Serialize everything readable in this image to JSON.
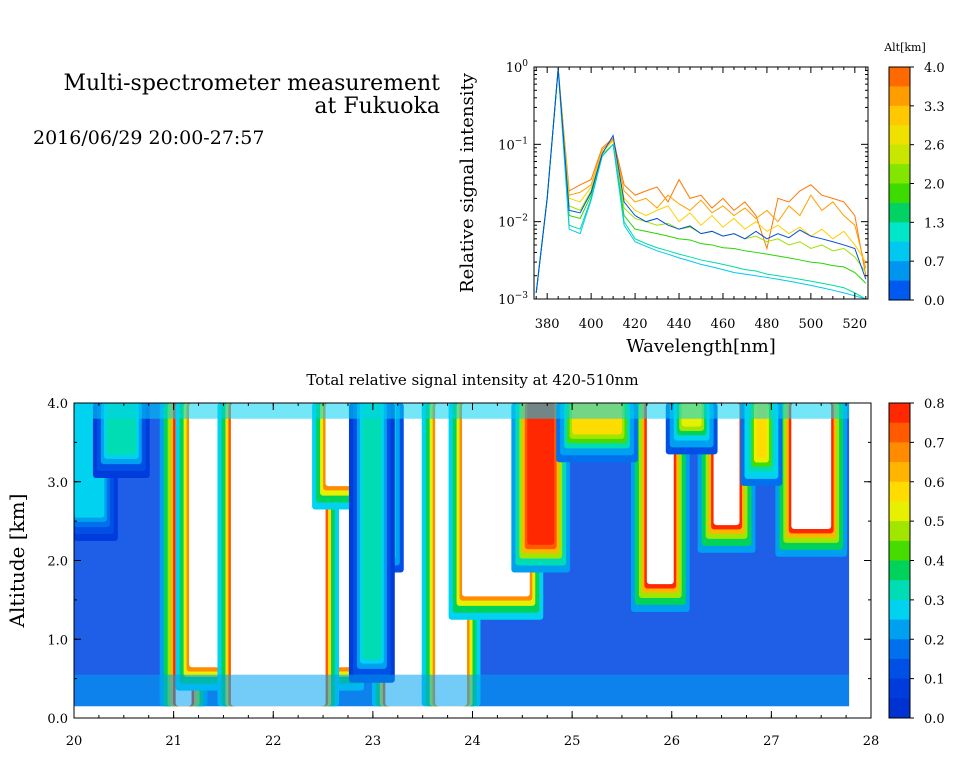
{
  "header": {
    "title_line1": "Multi-spectrometer measurement",
    "title_line2": "at Fukuoka",
    "datetime": "2016/06/29 20:00-27:57"
  },
  "chart_data": [
    {
      "type": "line",
      "xlabel": "Wavelength[nm]",
      "ylabel": "Relative signal intensity",
      "xlim": [
        374,
        526
      ],
      "ylim": [
        0.001,
        1
      ],
      "yscale": "log",
      "x_ticks": [
        380,
        400,
        420,
        440,
        460,
        480,
        500,
        520
      ],
      "y_ticks": [
        {
          "value": 0.001,
          "mantissa": "10",
          "exp": "−3"
        },
        {
          "value": 0.01,
          "mantissa": "10",
          "exp": "−2"
        },
        {
          "value": 0.1,
          "mantissa": "10",
          "exp": "−1"
        },
        {
          "value": 1,
          "mantissa": "10",
          "exp": "0"
        }
      ],
      "x": [
        375,
        380,
        385,
        390,
        395,
        400,
        405,
        410,
        415,
        420,
        425,
        430,
        435,
        440,
        445,
        450,
        455,
        460,
        465,
        470,
        475,
        480,
        485,
        490,
        495,
        500,
        505,
        510,
        515,
        520,
        525
      ],
      "colorbar": {
        "label": "Alt[km]",
        "ticks": [
          "4.0",
          "3.3",
          "2.6",
          "2.0",
          "1.3",
          "0.7",
          "0.0"
        ],
        "colors": [
          "#ff6a00",
          "#ff9d00",
          "#ffc800",
          "#f0e000",
          "#c8e600",
          "#82e600",
          "#3cdc00",
          "#00d264",
          "#00e6c8",
          "#00c8f0",
          "#0096f0",
          "#005af0"
        ]
      },
      "series": [
        {
          "color": "#ff7800",
          "values": [
            0.0012,
            0.02,
            0.95,
            0.025,
            0.03,
            0.035,
            0.09,
            0.12,
            0.03,
            0.022,
            0.025,
            0.028,
            0.018,
            0.035,
            0.02,
            0.022,
            0.015,
            0.02,
            0.014,
            0.018,
            0.012,
            0.0045,
            0.02,
            0.018,
            0.025,
            0.03,
            0.022,
            0.02,
            0.018,
            0.012,
            0.002
          ]
        },
        {
          "color": "#ffa000",
          "values": [
            0.0012,
            0.02,
            0.95,
            0.022,
            0.024,
            0.03,
            0.085,
            0.115,
            0.025,
            0.018,
            0.02,
            0.015,
            0.022,
            0.017,
            0.014,
            0.019,
            0.013,
            0.016,
            0.012,
            0.015,
            0.011,
            0.014,
            0.01,
            0.016,
            0.012,
            0.022,
            0.014,
            0.018,
            0.012,
            0.009,
            0.0025
          ]
        },
        {
          "color": "#ffd000",
          "values": [
            0.0012,
            0.02,
            0.95,
            0.02,
            0.018,
            0.028,
            0.08,
            0.11,
            0.02,
            0.014,
            0.012,
            0.014,
            0.016,
            0.01,
            0.013,
            0.009,
            0.012,
            0.0085,
            0.011,
            0.008,
            0.01,
            0.0075,
            0.009,
            0.007,
            0.0085,
            0.0065,
            0.008,
            0.006,
            0.0075,
            0.005,
            0.003
          ]
        },
        {
          "color": "#a0e000",
          "values": [
            0.0012,
            0.02,
            0.95,
            0.016,
            0.014,
            0.025,
            0.075,
            0.1,
            0.015,
            0.011,
            0.01,
            0.009,
            0.0095,
            0.008,
            0.0085,
            0.007,
            0.0075,
            0.0065,
            0.007,
            0.006,
            0.0065,
            0.0055,
            0.006,
            0.005,
            0.0055,
            0.0045,
            0.005,
            0.0042,
            0.0045,
            0.0035,
            0.0022
          ]
        },
        {
          "color": "#2ad400",
          "values": [
            0.0012,
            0.02,
            0.95,
            0.012,
            0.011,
            0.022,
            0.07,
            0.1,
            0.012,
            0.008,
            0.0075,
            0.007,
            0.0065,
            0.006,
            0.0058,
            0.0052,
            0.005,
            0.0046,
            0.0045,
            0.0042,
            0.004,
            0.0038,
            0.0036,
            0.0034,
            0.0032,
            0.003,
            0.0029,
            0.0027,
            0.0026,
            0.0022,
            0.0016
          ]
        },
        {
          "color": "#00dca0",
          "values": [
            0.0012,
            0.02,
            0.95,
            0.009,
            0.008,
            0.02,
            0.07,
            0.1,
            0.01,
            0.006,
            0.0052,
            0.0046,
            0.0042,
            0.0038,
            0.0035,
            0.0032,
            0.003,
            0.0028,
            0.0026,
            0.0024,
            0.0023,
            0.0021,
            0.002,
            0.0019,
            0.0018,
            0.0017,
            0.0016,
            0.0015,
            0.0014,
            0.0012,
            0.001
          ]
        },
        {
          "color": "#00c8f0",
          "values": [
            0.0012,
            0.02,
            0.95,
            0.008,
            0.007,
            0.019,
            0.07,
            0.1,
            0.009,
            0.0055,
            0.0048,
            0.0042,
            0.0038,
            0.0034,
            0.0031,
            0.0028,
            0.0026,
            0.0024,
            0.0022,
            0.0021,
            0.002,
            0.0019,
            0.0018,
            0.0017,
            0.0016,
            0.0015,
            0.0014,
            0.0013,
            0.0012,
            0.0011,
            0.001
          ]
        },
        {
          "color": "#0050e0",
          "values": [
            0.0012,
            0.02,
            0.95,
            0.014,
            0.013,
            0.024,
            0.075,
            0.13,
            0.018,
            0.012,
            0.01,
            0.011,
            0.009,
            0.008,
            0.0088,
            0.007,
            0.0075,
            0.0065,
            0.007,
            0.006,
            0.0075,
            0.006,
            0.007,
            0.0062,
            0.0078,
            0.0065,
            0.006,
            0.0055,
            0.005,
            0.0045,
            0.0018
          ]
        }
      ]
    },
    {
      "type": "heatmap",
      "title": "Total relative signal intensity at 420-510nm",
      "xlabel": "",
      "ylabel": "Altitude [km]",
      "xlim": [
        20,
        28
      ],
      "ylim": [
        0,
        4
      ],
      "x_ticks": [
        "20",
        "21",
        "22",
        "23",
        "24",
        "25",
        "26",
        "27",
        "28"
      ],
      "y_ticks": [
        "0.0",
        "1.0",
        "2.0",
        "3.0",
        "4.0"
      ],
      "data_range_x": [
        20,
        27.78
      ],
      "data_range_y": [
        0.15,
        4.0
      ],
      "colorbar": {
        "ticks": [
          "0.8",
          "0.7",
          "0.6",
          "0.5",
          "0.4",
          "0.3",
          "0.2",
          "0.1",
          "0.0"
        ],
        "colors": [
          "#ff2800",
          "#ff5a00",
          "#ff8c00",
          "#ffb400",
          "#ffdc00",
          "#e6f000",
          "#a0e600",
          "#46dc00",
          "#00d25a",
          "#00dcb4",
          "#00d2f0",
          "#00a0f0",
          "#0070ec",
          "#0050e6",
          "#003cdc",
          "#0032d2"
        ]
      },
      "low_color": "#1f5ee6",
      "features": [
        {
          "kind": "column",
          "t0": 20.0,
          "t1": 20.28,
          "base": 2.6,
          "level": 0.3
        },
        {
          "kind": "column",
          "t0": 21.02,
          "t1": 21.18,
          "base": 0.15,
          "level": 0.85
        },
        {
          "kind": "column",
          "t0": 21.18,
          "t1": 22.75,
          "base": 0.7,
          "level": 0.9
        },
        {
          "kind": "column",
          "t0": 21.6,
          "t1": 22.5,
          "base": 0.15,
          "level": 0.95
        },
        {
          "kind": "column",
          "t0": 22.55,
          "t1": 22.92,
          "base": 3.0,
          "level": 0.9
        },
        {
          "kind": "column",
          "t0": 23.15,
          "t1": 23.6,
          "base": 0.15,
          "level": 0.95
        },
        {
          "kind": "column",
          "t0": 23.65,
          "t1": 23.92,
          "base": 0.15,
          "level": 0.9
        },
        {
          "kind": "column",
          "t0": 23.92,
          "t1": 24.55,
          "base": 1.6,
          "level": 0.9
        },
        {
          "kind": "column",
          "t0": 24.55,
          "t1": 24.82,
          "base": 2.2,
          "level": 0.8
        },
        {
          "kind": "column",
          "t0": 25.75,
          "t1": 26.02,
          "base": 1.7,
          "level": 0.85
        },
        {
          "kind": "column",
          "t0": 26.42,
          "t1": 26.68,
          "base": 2.45,
          "level": 0.85
        },
        {
          "kind": "column",
          "t0": 27.2,
          "t1": 27.6,
          "base": 2.4,
          "level": 0.85
        },
        {
          "kind": "column",
          "t0": 26.85,
          "t1": 26.95,
          "base": 3.3,
          "level": 0.6
        },
        {
          "kind": "column",
          "t0": 23.0,
          "t1": 23.15,
          "base": 2.2,
          "level": 0.5
        },
        {
          "kind": "column",
          "t0": 25.0,
          "t1": 25.5,
          "base": 3.6,
          "level": 0.55
        },
        {
          "kind": "column",
          "t0": 26.1,
          "t1": 26.3,
          "base": 3.7,
          "level": 0.5
        },
        {
          "kind": "column",
          "t0": 22.92,
          "t1": 23.06,
          "base": 0.8,
          "level": 0.35
        },
        {
          "kind": "column",
          "t0": 20.35,
          "t1": 20.6,
          "base": 3.4,
          "level": 0.35
        },
        {
          "kind": "band",
          "y0": 0.15,
          "y1": 0.55,
          "level": 0.22
        },
        {
          "kind": "band",
          "y0": 3.8,
          "y1": 4.0,
          "level": 0.25
        }
      ]
    }
  ]
}
